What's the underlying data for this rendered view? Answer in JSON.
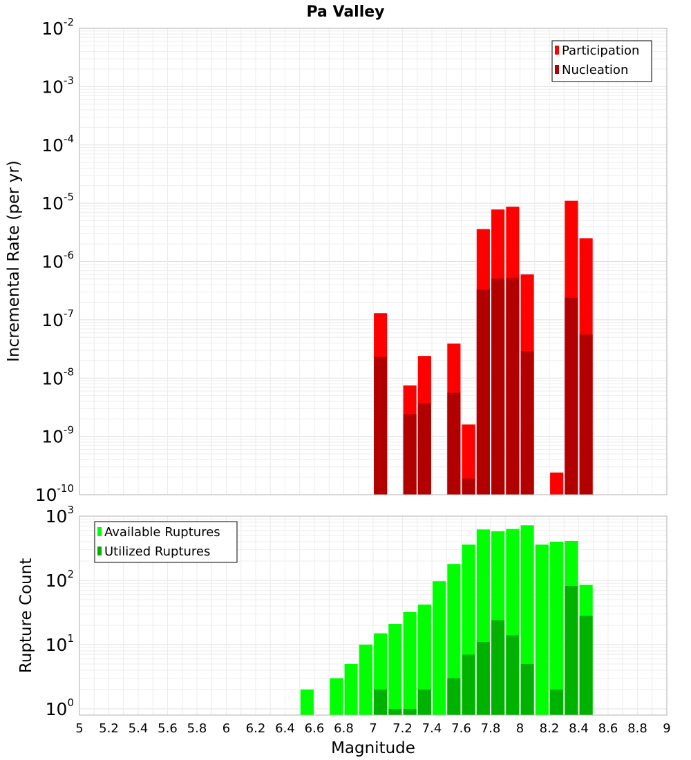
{
  "chart_data": [
    {
      "type": "bar",
      "title": "Pa Valley",
      "xlabel": "",
      "ylabel": "Incremental Rate (per yr)",
      "xlim": [
        5,
        9
      ],
      "ylim": [
        1e-10,
        0.01
      ],
      "yscale": "log",
      "grid": true,
      "legend_position": "top-right",
      "bar_width": 0.09,
      "y_ticks": [
        {
          "base": "10",
          "exp": "-2"
        },
        {
          "base": "10",
          "exp": "-3"
        },
        {
          "base": "10",
          "exp": "-4"
        },
        {
          "base": "10",
          "exp": "-5"
        },
        {
          "base": "10",
          "exp": "-6"
        },
        {
          "base": "10",
          "exp": "-7"
        },
        {
          "base": "10",
          "exp": "-8"
        },
        {
          "base": "10",
          "exp": "-9"
        },
        {
          "base": "10",
          "exp": "-10"
        }
      ],
      "series": [
        {
          "name": "Participation",
          "color": "#ff0000",
          "x": [
            7.05,
            7.25,
            7.35,
            7.55,
            7.65,
            7.75,
            7.85,
            7.95,
            8.05,
            8.25,
            8.35,
            8.45
          ],
          "values": [
            1.3e-07,
            7.5e-09,
            2.4e-08,
            3.9e-08,
            1.6e-09,
            3.6e-06,
            7.8e-06,
            8.7e-06,
            6e-07,
            2.4e-10,
            1.1e-05,
            2.5e-06
          ]
        },
        {
          "name": "Nucleation",
          "color": "#b20000",
          "x": [
            7.05,
            7.25,
            7.35,
            7.55,
            7.65,
            7.75,
            7.85,
            7.95,
            8.05,
            8.35,
            8.45
          ],
          "values": [
            2.3e-08,
            2.4e-09,
            3.7e-09,
            5.6e-09,
            1.9e-10,
            3.3e-07,
            5.1e-07,
            5.2e-07,
            2.9e-08,
            2.4e-07,
            5.6e-08
          ]
        }
      ]
    },
    {
      "type": "bar",
      "title": "",
      "xlabel": "Magnitude",
      "ylabel": "Rupture Count",
      "xlim": [
        5,
        9
      ],
      "ylim": [
        0.8,
        1000
      ],
      "yscale": "log",
      "grid": true,
      "legend_position": "top-left",
      "bar_width": 0.09,
      "x_ticks": [
        "5",
        "5.2",
        "5.4",
        "5.6",
        "5.8",
        "6",
        "6.2",
        "6.4",
        "6.6",
        "6.8",
        "7",
        "7.2",
        "7.4",
        "7.6",
        "7.8",
        "8",
        "8.2",
        "8.4",
        "8.6",
        "8.8",
        "9"
      ],
      "y_ticks": [
        {
          "base": "10",
          "exp": "3"
        },
        {
          "base": "10",
          "exp": "2"
        },
        {
          "base": "10",
          "exp": "1"
        },
        {
          "base": "10",
          "exp": "0"
        }
      ],
      "series": [
        {
          "name": "Available Ruptures",
          "color": "#00ff00",
          "x": [
            6.55,
            6.75,
            6.85,
            6.95,
            7.05,
            7.15,
            7.25,
            7.35,
            7.45,
            7.55,
            7.65,
            7.75,
            7.85,
            7.95,
            8.05,
            8.15,
            8.25,
            8.35,
            8.45
          ],
          "values": [
            2,
            3,
            5,
            10,
            15,
            21,
            32,
            42,
            97,
            180,
            360,
            620,
            580,
            630,
            720,
            360,
            400,
            410,
            85
          ]
        },
        {
          "name": "Utilized Ruptures",
          "color": "#00b200",
          "x": [
            7.05,
            7.15,
            7.25,
            7.35,
            7.55,
            7.65,
            7.75,
            7.85,
            7.95,
            8.05,
            8.25,
            8.35,
            8.45
          ],
          "values": [
            2,
            1,
            1,
            2,
            3,
            7,
            11,
            24,
            14,
            5,
            2,
            82,
            28
          ]
        }
      ]
    }
  ]
}
